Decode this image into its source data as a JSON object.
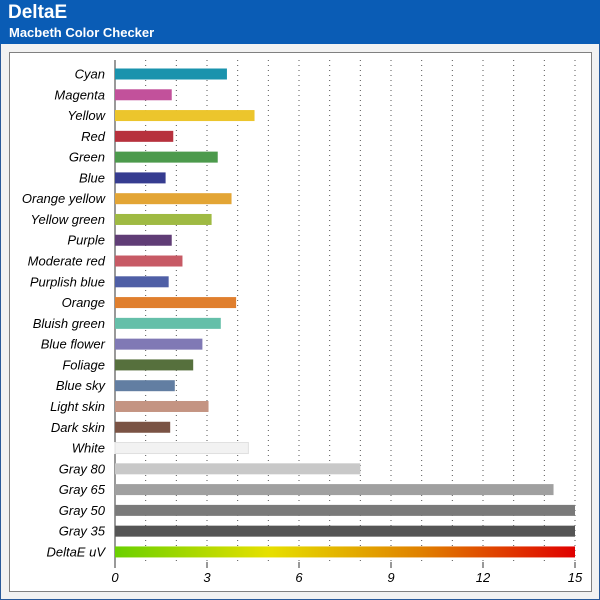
{
  "header": {
    "title": "DeltaE",
    "subtitle": "Macbeth Color Checker"
  },
  "colors": {
    "header_bg": "#0a5cb5",
    "background": "#f2f2f2",
    "plot_bg": "#ffffff"
  },
  "chart_data": {
    "type": "bar",
    "orientation": "horizontal",
    "xlim": [
      0,
      15
    ],
    "xticks": [
      0,
      3,
      6,
      9,
      12,
      15
    ],
    "grid": "vertical-dotted",
    "categories": [
      "Cyan",
      "Magenta",
      "Yellow",
      "Red",
      "Green",
      "Blue",
      "Orange yellow",
      "Yellow green",
      "Purple",
      "Moderate red",
      "Purplish blue",
      "Orange",
      "Bluish green",
      "Blue flower",
      "Foliage",
      "Blue sky",
      "Light skin",
      "Dark skin",
      "White",
      "Gray 80",
      "Gray 65",
      "Gray 50",
      "Gray 35",
      "DeltaE uV"
    ],
    "values": [
      3.65,
      1.85,
      4.55,
      1.9,
      3.35,
      1.65,
      3.8,
      3.15,
      1.85,
      2.2,
      1.75,
      3.95,
      3.45,
      2.85,
      2.55,
      1.95,
      3.05,
      1.8,
      4.35,
      8.0,
      14.3,
      15.0,
      15.0,
      15.0
    ],
    "bar_colors": [
      "#1a93ad",
      "#c2519b",
      "#ecc52c",
      "#b7313d",
      "#4c9a4c",
      "#363c90",
      "#e3a535",
      "#9fba43",
      "#603d76",
      "#c75a65",
      "#4f5fa6",
      "#e07f2e",
      "#65bfa9",
      "#8079b5",
      "#56703d",
      "#627ea2",
      "#c49482",
      "#7a5344",
      "#f2f2f2",
      "#c8c8c8",
      "#a0a0a0",
      "#7a7a7a",
      "#555555",
      "gradient"
    ],
    "gradient_stops": [
      "#6ad000",
      "#e6e000",
      "#e08000",
      "#e00000"
    ]
  }
}
